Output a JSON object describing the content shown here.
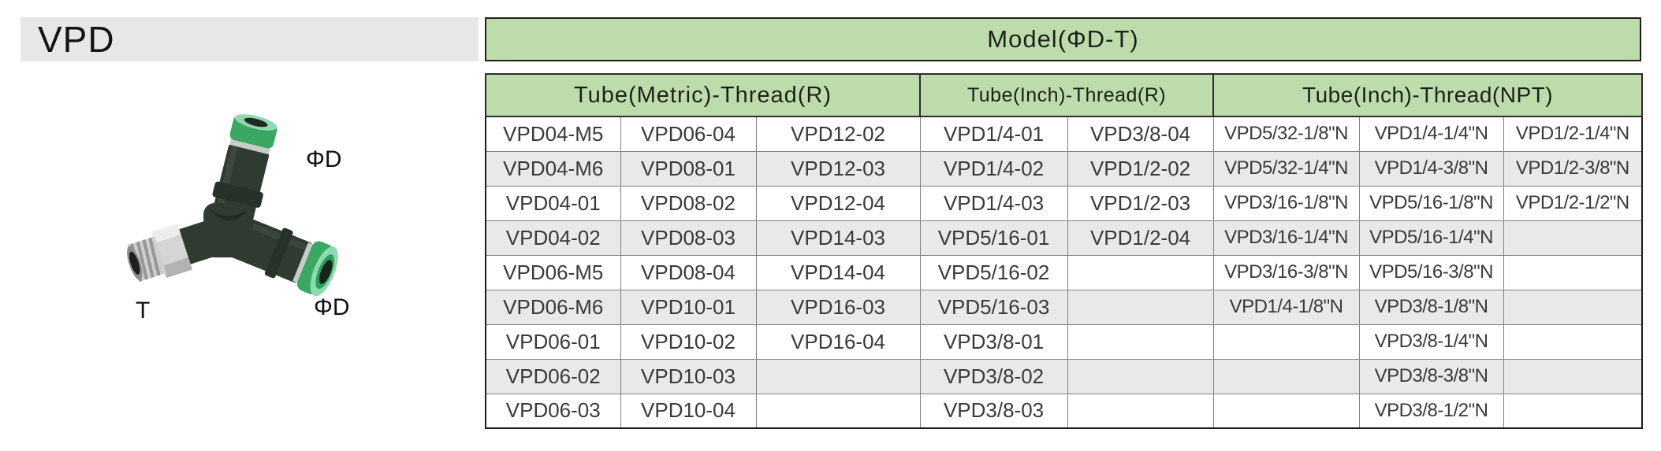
{
  "page": {
    "title": "VPD"
  },
  "product": {
    "image": "push-in-male-branch-tee-fitting",
    "labels": {
      "top_port": "ΦD",
      "side_port": "ΦD",
      "thread": "T"
    }
  },
  "table": {
    "model_header": "Model(ΦD-T)",
    "groups": [
      {
        "label": "Tube(Metric)-Thread(R)",
        "colspan": 3
      },
      {
        "label": "Tube(Inch)-Thread(R)",
        "colspan": 2
      },
      {
        "label": "Tube(Inch)-Thread(NPT)",
        "colspan": 3
      }
    ],
    "rows": [
      [
        "VPD04-M5",
        "VPD06-04",
        "VPD12-02",
        "VPD1/4-01",
        "VPD3/8-04",
        "VPD5/32-1/8\"N",
        "VPD1/4-1/4\"N",
        "VPD1/2-1/4\"N"
      ],
      [
        "VPD04-M6",
        "VPD08-01",
        "VPD12-03",
        "VPD1/4-02",
        "VPD1/2-02",
        "VPD5/32-1/4\"N",
        "VPD1/4-3/8\"N",
        "VPD1/2-3/8\"N"
      ],
      [
        "VPD04-01",
        "VPD08-02",
        "VPD12-04",
        "VPD1/4-03",
        "VPD1/2-03",
        "VPD3/16-1/8\"N",
        "VPD5/16-1/8\"N",
        "VPD1/2-1/2\"N"
      ],
      [
        "VPD04-02",
        "VPD08-03",
        "VPD14-03",
        "VPD5/16-01",
        "VPD1/2-04",
        "VPD3/16-1/4\"N",
        "VPD5/16-1/4\"N",
        ""
      ],
      [
        "VPD06-M5",
        "VPD08-04",
        "VPD14-04",
        "VPD5/16-02",
        "",
        "VPD3/16-3/8\"N",
        "VPD5/16-3/8\"N",
        ""
      ],
      [
        "VPD06-M6",
        "VPD10-01",
        "VPD16-03",
        "VPD5/16-03",
        "",
        "VPD1/4-1/8\"N",
        "VPD3/8-1/8\"N",
        ""
      ],
      [
        "VPD06-01",
        "VPD10-02",
        "VPD16-04",
        "VPD3/8-01",
        "",
        "",
        "VPD3/8-1/4\"N",
        ""
      ],
      [
        "VPD06-02",
        "VPD10-03",
        "",
        "VPD3/8-02",
        "",
        "",
        "VPD3/8-3/8\"N",
        ""
      ],
      [
        "VPD06-03",
        "VPD10-04",
        "",
        "VPD3/8-03",
        "",
        "",
        "VPD3/8-1/2\"N",
        ""
      ]
    ]
  },
  "colors": {
    "header_green": "#bedcab",
    "title_bar_gray": "#e7e7e7",
    "row_alt_gray": "#e9e9e9",
    "fitting_body": "#2f3a31",
    "collet_green": "#3aa863",
    "collet_mint": "#8fd9ae",
    "metal_silver": "#cfcfcf"
  }
}
